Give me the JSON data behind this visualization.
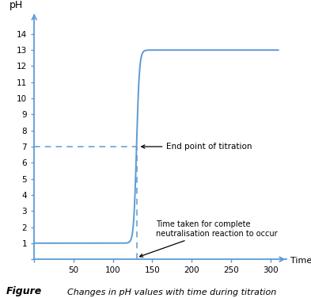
{
  "title": "",
  "xlabel": "Time (s)",
  "ylabel": "pH",
  "xlim": [
    0,
    320
  ],
  "ylim": [
    0,
    15
  ],
  "xticks": [
    0,
    50,
    100,
    150,
    200,
    250,
    300
  ],
  "yticks": [
    0,
    1,
    2,
    3,
    4,
    5,
    6,
    7,
    8,
    9,
    10,
    11,
    12,
    13,
    14
  ],
  "curve_color": "#5b9bd5",
  "dashed_color": "#5b9bd5",
  "inflection_x": 130,
  "end_point_label": "End point of titration",
  "neutralisation_label": "Time taken for complete\nneutralisation reaction to occur",
  "figure_label": "Figure",
  "figure_caption": "    Changes in pH values with time during titration",
  "bg_color": "#ffffff",
  "axis_color": "#5b9bd5",
  "start_ph": 1.0,
  "end_ph": 13.0,
  "sigmoid_steepness": 0.55
}
